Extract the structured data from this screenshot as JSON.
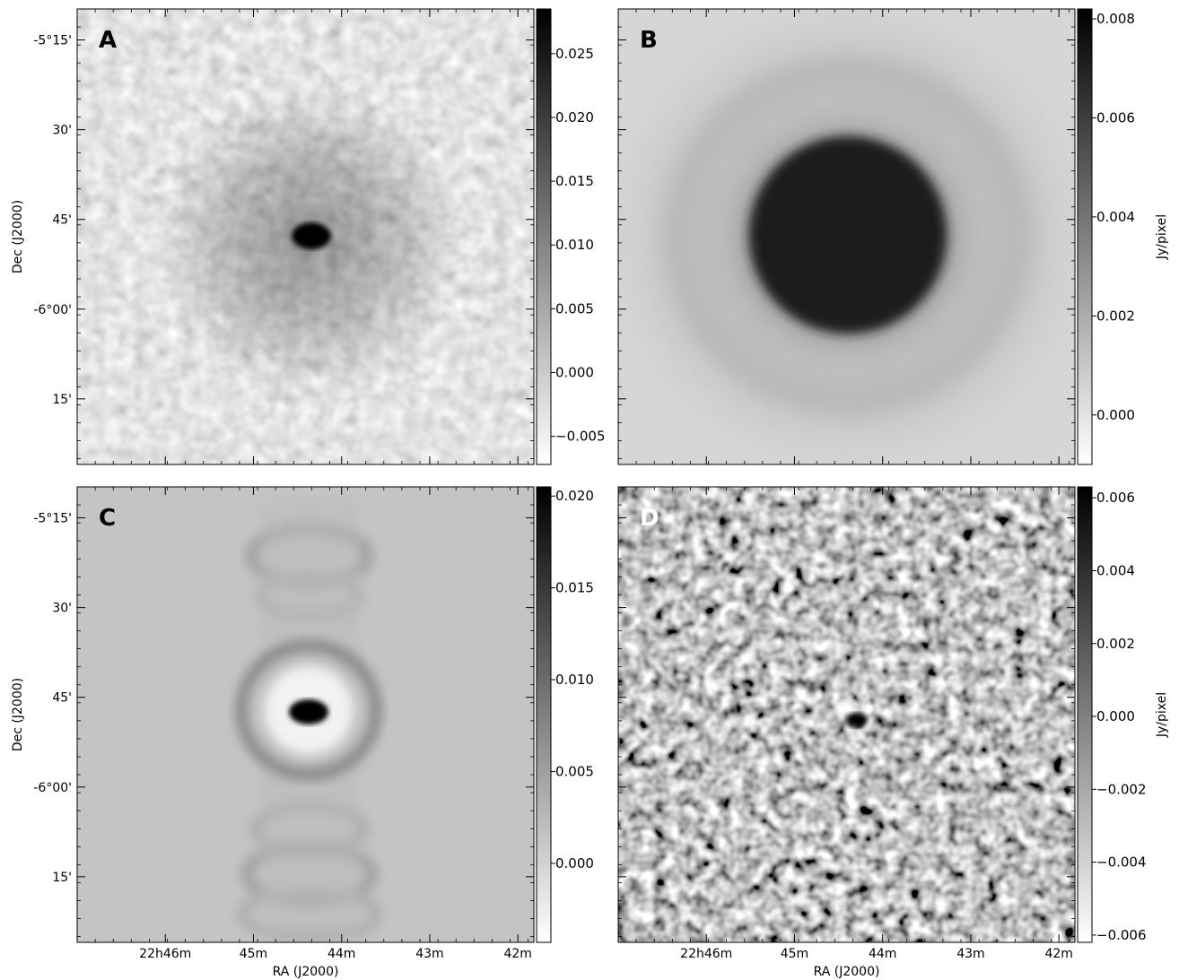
{
  "chart_data": [
    {
      "type": "heatmap",
      "panel_label": "A",
      "xlabel": "",
      "ylabel": "Dec (J2000)",
      "x_ticks": [],
      "y_ticks": [
        "-5°15'",
        "30'",
        "45'",
        "-6°00'",
        "15'"
      ],
      "colorbar": {
        "label": "",
        "range": [
          -0.0072,
          0.0285
        ],
        "ticks": [
          -0.005,
          0.0,
          0.005,
          0.01,
          0.015,
          0.02,
          0.025
        ],
        "tick_labels": [
          "−0.005",
          "0.000",
          "0.005",
          "0.010",
          "0.015",
          "0.020",
          "0.025"
        ]
      }
    },
    {
      "type": "heatmap",
      "panel_label": "B",
      "xlabel": "",
      "ylabel": "",
      "x_ticks": [],
      "y_ticks": [],
      "colorbar": {
        "label": "Jy/pixel",
        "range": [
          -0.001,
          0.0082
        ],
        "ticks": [
          0.0,
          0.002,
          0.004,
          0.006,
          0.008
        ],
        "tick_labels": [
          "0.000",
          "0.002",
          "0.004",
          "0.006",
          "0.008"
        ]
      }
    },
    {
      "type": "heatmap",
      "panel_label": "C",
      "xlabel": "RA (J2000)",
      "ylabel": "Dec (J2000)",
      "x_ticks": [
        "22h46m",
        "45m",
        "44m",
        "43m",
        "42m"
      ],
      "y_ticks": [
        "-5°15'",
        "30'",
        "45'",
        "-6°00'",
        "15'"
      ],
      "colorbar": {
        "label": "",
        "range": [
          -0.0043,
          0.0205
        ],
        "ticks": [
          0.0,
          0.005,
          0.01,
          0.015,
          0.02
        ],
        "tick_labels": [
          "0.000",
          "0.005",
          "0.010",
          "0.015",
          "0.020"
        ]
      }
    },
    {
      "type": "heatmap",
      "panel_label": "D",
      "xlabel": "RA (J2000)",
      "ylabel": "",
      "x_ticks": [
        "22h46m",
        "45m",
        "44m",
        "43m",
        "42m"
      ],
      "y_ticks": [],
      "colorbar": {
        "label": "Jy/pixel",
        "range": [
          -0.0062,
          0.0063
        ],
        "ticks": [
          -0.006,
          -0.004,
          -0.002,
          0.0,
          0.002,
          0.004,
          0.006
        ],
        "tick_labels": [
          "−0.006",
          "−0.004",
          "−0.002",
          "0.000",
          "0.002",
          "0.004",
          "0.006"
        ]
      }
    }
  ]
}
